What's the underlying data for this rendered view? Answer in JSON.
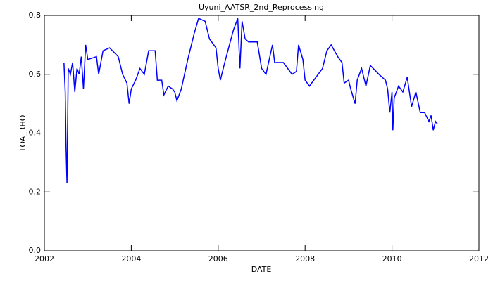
{
  "chart_data": {
    "type": "line",
    "title": "Uyuni_AATSR_2nd_Reprocessing",
    "x_label": "DATE",
    "y_label": "TOA_RHO",
    "x": [
      2002.45,
      2002.48,
      2002.5,
      2002.52,
      2002.55,
      2002.6,
      2002.65,
      2002.7,
      2002.75,
      2002.8,
      2002.85,
      2002.9,
      2002.95,
      2003.0,
      2003.2,
      2003.25,
      2003.35,
      2003.5,
      2003.7,
      2003.8,
      2003.9,
      2003.95,
      2004.0,
      2004.1,
      2004.2,
      2004.3,
      2004.4,
      2004.55,
      2004.6,
      2004.7,
      2004.75,
      2004.85,
      2004.95,
      2005.0,
      2005.05,
      2005.15,
      2005.3,
      2005.45,
      2005.55,
      2005.7,
      2005.8,
      2005.95,
      2006.0,
      2006.05,
      2006.15,
      2006.35,
      2006.45,
      2006.5,
      2006.55,
      2006.62,
      2006.7,
      2006.9,
      2007.0,
      2007.1,
      2007.25,
      2007.3,
      2007.5,
      2007.7,
      2007.8,
      2007.85,
      2007.95,
      2008.0,
      2008.1,
      2008.4,
      2008.5,
      2008.6,
      2008.75,
      2008.85,
      2008.9,
      2009.0,
      2009.05,
      2009.15,
      2009.2,
      2009.3,
      2009.4,
      2009.5,
      2009.7,
      2009.85,
      2009.9,
      2009.95,
      2010.0,
      2010.02,
      2010.05,
      2010.15,
      2010.25,
      2010.35,
      2010.45,
      2010.55,
      2010.65,
      2010.75,
      2010.85,
      2010.9,
      2010.95,
      2011.0,
      2011.05
    ],
    "values": [
      0.64,
      0.54,
      0.35,
      0.23,
      0.62,
      0.6,
      0.64,
      0.54,
      0.62,
      0.6,
      0.66,
      0.55,
      0.7,
      0.65,
      0.66,
      0.6,
      0.68,
      0.69,
      0.66,
      0.6,
      0.57,
      0.5,
      0.55,
      0.58,
      0.62,
      0.6,
      0.68,
      0.68,
      0.58,
      0.58,
      0.53,
      0.56,
      0.55,
      0.54,
      0.51,
      0.55,
      0.65,
      0.74,
      0.79,
      0.78,
      0.72,
      0.69,
      0.62,
      0.58,
      0.64,
      0.75,
      0.79,
      0.62,
      0.78,
      0.72,
      0.71,
      0.71,
      0.62,
      0.6,
      0.7,
      0.64,
      0.64,
      0.6,
      0.61,
      0.7,
      0.65,
      0.58,
      0.56,
      0.62,
      0.68,
      0.7,
      0.66,
      0.64,
      0.57,
      0.58,
      0.55,
      0.5,
      0.58,
      0.62,
      0.56,
      0.63,
      0.6,
      0.58,
      0.55,
      0.47,
      0.54,
      0.41,
      0.52,
      0.56,
      0.54,
      0.59,
      0.49,
      0.54,
      0.47,
      0.47,
      0.44,
      0.46,
      0.41,
      0.44,
      0.43
    ],
    "color": "#0000ff",
    "xlim": [
      2002,
      2012
    ],
    "xticks": [
      2002,
      2004,
      2006,
      2008,
      2010,
      2012
    ],
    "ylim": [
      0,
      0.8
    ],
    "yticks": [
      {
        "value": 0,
        "label": "0.0"
      },
      0.2,
      0.4,
      0.6,
      0.8
    ]
  }
}
